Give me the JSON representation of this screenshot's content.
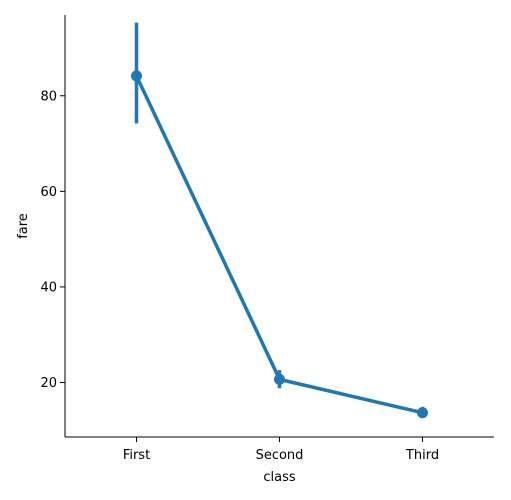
{
  "chart_data": {
    "type": "line",
    "title": "",
    "xlabel": "class",
    "ylabel": "fare",
    "categories": [
      "First",
      "Second",
      "Third"
    ],
    "series": [
      {
        "values": [
          84.15,
          20.66,
          13.68
        ],
        "ci_low": [
          74.2,
          18.8,
          12.6
        ],
        "ci_high": [
          95.3,
          22.6,
          14.9
        ],
        "color": "#1f77b4"
      }
    ],
    "ylim": [
      8.6,
      96.9
    ],
    "yticks": [
      20,
      40,
      60,
      80
    ],
    "grid": false,
    "legend": "none"
  }
}
